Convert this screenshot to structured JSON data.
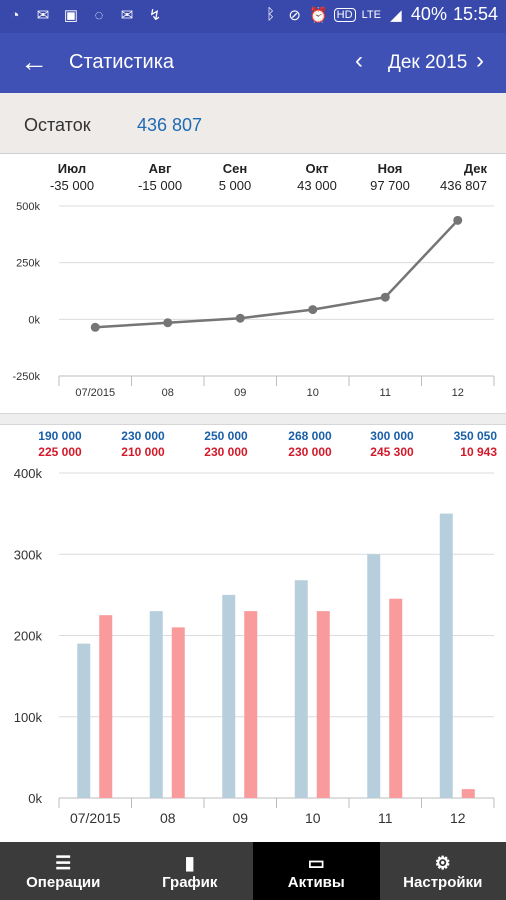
{
  "status_bar": {
    "battery": "40%",
    "time": "15:54",
    "network": "LTE",
    "hd": "HD",
    "icons": [
      "app-icon",
      "mail-icon",
      "image-icon",
      "talk-icon",
      "mail-icon",
      "missed-call-icon",
      "bluetooth-icon",
      "mute-icon",
      "alarm-icon",
      "hd-icon",
      "lte-icon",
      "signal-icon"
    ]
  },
  "app_bar": {
    "title": "Статистика",
    "period": "Дек 2015"
  },
  "balance": {
    "label": "Остаток",
    "value": "436 807",
    "color": "#1e6ab5"
  },
  "chart_data": [
    {
      "type": "line",
      "header_months": [
        "Июл",
        "Авг",
        "Сен",
        "Окт",
        "Ноя",
        "Дек"
      ],
      "header_values": [
        "-35 000",
        "-15 000",
        "5 000",
        "43 000",
        "97 700",
        "436 807"
      ],
      "categories": [
        "07/2015",
        "08",
        "09",
        "10",
        "11",
        "12"
      ],
      "values": [
        -35000,
        -15000,
        5000,
        43000,
        97700,
        436807
      ],
      "yticks": [
        "500k",
        "250k",
        "0k",
        "-250k"
      ],
      "ylim": [
        -250000,
        500000
      ],
      "grid": true,
      "colors": {
        "line": "#757575"
      }
    },
    {
      "type": "bar",
      "categories": [
        "07/2015",
        "08",
        "09",
        "10",
        "11",
        "12"
      ],
      "header_income": [
        "190 000",
        "230 000",
        "250 000",
        "268 000",
        "300 000",
        "350 050"
      ],
      "header_expense": [
        "225 000",
        "210 000",
        "230 000",
        "230 000",
        "245 300",
        "10 943"
      ],
      "series": [
        {
          "values": [
            190000,
            230000,
            250000,
            268000,
            300000,
            350050
          ],
          "color": "#b7cfdd"
        },
        {
          "values": [
            225000,
            210000,
            230000,
            230000,
            245300,
            10943
          ],
          "color": "#f99a9c"
        }
      ],
      "yticks": [
        "400k",
        "300k",
        "200k",
        "100k",
        "0k"
      ],
      "ylim": [
        0,
        400000
      ],
      "grid": true,
      "header_colors": {
        "income": "#1a5fa8",
        "expense": "#d3192a"
      }
    }
  ],
  "tabs": [
    {
      "label": "Операции",
      "icon": "list-icon",
      "active": false
    },
    {
      "label": "График",
      "icon": "bar-chart-icon",
      "active": false
    },
    {
      "label": "Активы",
      "icon": "card-icon",
      "active": true
    },
    {
      "label": "Настройки",
      "icon": "settings-icon",
      "active": false
    }
  ]
}
